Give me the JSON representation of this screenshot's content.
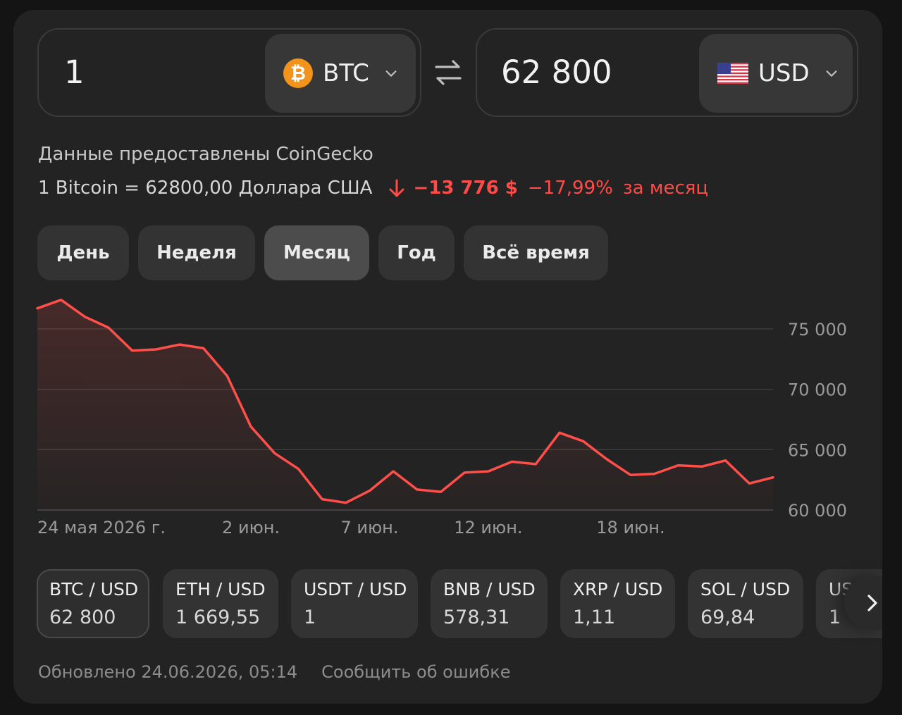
{
  "converter": {
    "from_amount": "1",
    "from_currency": "BTC",
    "from_icon": "bitcoin-coin-icon",
    "to_amount": "62 800",
    "to_currency": "USD",
    "to_icon": "us-flag-icon",
    "swap_icon": "swap-arrows-icon"
  },
  "info": {
    "source": "Данные предоставлены CoinGecko",
    "rate": "1 Bitcoin = 62800,00 Доллара США",
    "change_abs": "−13 776 $",
    "change_pct": "−17,99%",
    "change_period": "за месяц"
  },
  "periods": [
    {
      "label": "День",
      "active": false
    },
    {
      "label": "Неделя",
      "active": false
    },
    {
      "label": "Месяц",
      "active": true
    },
    {
      "label": "Год",
      "active": false
    },
    {
      "label": "Всё время",
      "active": false
    }
  ],
  "chart_data": {
    "type": "area",
    "x_labels": [
      "24 мая 2026 г.",
      "2 июн.",
      "7 июн.",
      "12 июн.",
      "18 июн."
    ],
    "y_ticks": [
      "75 000",
      "70 000",
      "65 000",
      "60 000"
    ],
    "y_tick_values": [
      75000,
      70000,
      65000,
      60000
    ],
    "ylim": [
      60000,
      77500
    ],
    "line_color": "#ff4f4a",
    "grid": true,
    "series": [
      {
        "dates": [
          "2026-05-24",
          "2026-05-25",
          "2026-05-26",
          "2026-05-27",
          "2026-05-28",
          "2026-05-29",
          "2026-05-30",
          "2026-05-31",
          "2026-06-01",
          "2026-06-02",
          "2026-06-03",
          "2026-06-04",
          "2026-06-05",
          "2026-06-06",
          "2026-06-07",
          "2026-06-08",
          "2026-06-09",
          "2026-06-10",
          "2026-06-11",
          "2026-06-12",
          "2026-06-13",
          "2026-06-14",
          "2026-06-15",
          "2026-06-16",
          "2026-06-17",
          "2026-06-18",
          "2026-06-19",
          "2026-06-20",
          "2026-06-21",
          "2026-06-22",
          "2026-06-23",
          "2026-06-24"
        ],
        "values": [
          76700,
          77400,
          76000,
          75100,
          73200,
          73300,
          73700,
          73400,
          71100,
          66900,
          64700,
          63400,
          60900,
          60600,
          61600,
          63200,
          61700,
          61500,
          63100,
          63200,
          64000,
          63800,
          66400,
          65700,
          64200,
          62900,
          63000,
          63700,
          63600,
          64100,
          62200,
          62700
        ]
      }
    ]
  },
  "pairs": [
    {
      "name": "BTC / USD",
      "value": "62 800",
      "active": true
    },
    {
      "name": "ETH / USD",
      "value": "1 669,55",
      "active": false
    },
    {
      "name": "USDT / USD",
      "value": "1",
      "active": false
    },
    {
      "name": "BNB / USD",
      "value": "578,31",
      "active": false
    },
    {
      "name": "XRP / USD",
      "value": "1,11",
      "active": false
    },
    {
      "name": "SOL / USD",
      "value": "69,84",
      "active": false
    },
    {
      "name": "USDC / USD",
      "value": "1",
      "active": false
    }
  ],
  "footer": {
    "updated": "Обновлено 24.06.2026, 05:14",
    "report": "Сообщить об ошибке"
  }
}
